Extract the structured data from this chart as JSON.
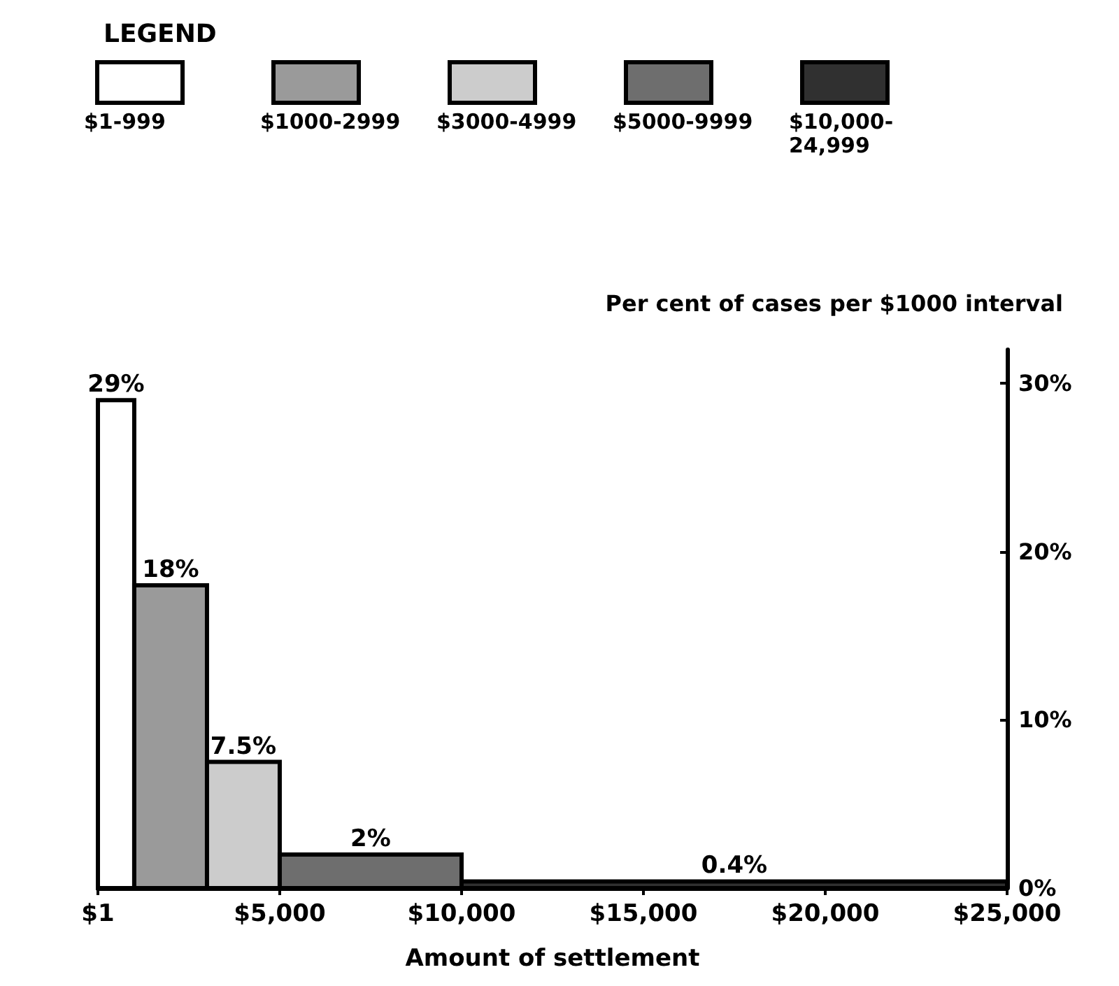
{
  "chart_data": {
    "type": "histogram",
    "legend_title": "LEGEND",
    "xlabel": "Amount of settlement",
    "ylabel": "Per cent of cases per $1000 interval",
    "xlim": [
      1,
      25000
    ],
    "xticks": [
      {
        "value": 1,
        "label": "$1"
      },
      {
        "value": 5000,
        "label": "$5,000"
      },
      {
        "value": 10000,
        "label": "$10,000"
      },
      {
        "value": 15000,
        "label": "$15,000"
      },
      {
        "value": 20000,
        "label": "$20,000"
      },
      {
        "value": 25000,
        "label": "$25,000"
      }
    ],
    "ylim": [
      0,
      32
    ],
    "yticks": [
      {
        "value": 0,
        "label": "0%"
      },
      {
        "value": 10,
        "label": "10%"
      },
      {
        "value": 20,
        "label": "20%"
      },
      {
        "value": 30,
        "label": "30%"
      }
    ],
    "grid": false,
    "bins": [
      1,
      1000,
      3000,
      5000,
      10000,
      25000
    ],
    "values": [
      29,
      18,
      7.5,
      2,
      0.4
    ],
    "value_labels": [
      "29%",
      "18%",
      "7.5%",
      "2%",
      "0.4%"
    ],
    "categories": [
      "$1-999",
      "$1000-2999",
      "$3000-4999",
      "$5000-9999",
      "$10,000-24,999"
    ],
    "colors": [
      "#ffffff",
      "#9a9a9a",
      "#cccccc",
      "#6e6e6e",
      "#303030"
    ]
  }
}
